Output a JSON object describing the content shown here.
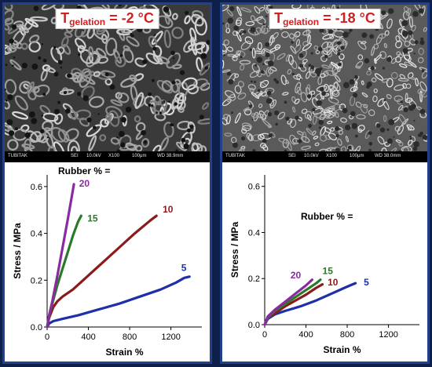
{
  "panels": [
    {
      "id": "left",
      "temperature_label": {
        "symbol": "T",
        "subscript": "gelation",
        "value": " = -2 °C"
      },
      "sem_info_bar": [
        "TUBITAK",
        "SEI",
        "10.0kV",
        "X100",
        "100μm",
        "WD 38.9mm"
      ],
      "annotation": "Rubber % ="
    },
    {
      "id": "right",
      "temperature_label": {
        "symbol": "T",
        "subscript": "gelation",
        "value": " = -18 °C"
      },
      "sem_info_bar": [
        "TUBITAK",
        "SEI",
        "10.0kV",
        "X100",
        "100μm",
        "WD 38.0mm"
      ],
      "annotation": "Rubber % ="
    }
  ],
  "chart_data": [
    {
      "type": "line",
      "xlabel": "Strain %",
      "ylabel": "Stress / MPa",
      "xlim": [
        0,
        1500
      ],
      "ylim": [
        0,
        0.65
      ],
      "xticks": [
        0,
        400,
        800,
        1200
      ],
      "yticks": [
        0.0,
        0.2,
        0.4,
        0.6
      ],
      "ytick_labels": [
        "0.0",
        "0.2",
        "0.4",
        "0.6"
      ],
      "xtick_labels": [
        "0",
        "400",
        "800",
        "1200"
      ],
      "series": [
        {
          "name": "5",
          "color": "#1f2fa8",
          "x": [
            0,
            20,
            60,
            150,
            300,
            500,
            700,
            900,
            1100,
            1250,
            1330,
            1380
          ],
          "y": [
            0,
            0.015,
            0.025,
            0.035,
            0.05,
            0.075,
            0.1,
            0.13,
            0.16,
            0.19,
            0.21,
            0.215
          ]
        },
        {
          "name": "10",
          "color": "#8b1a1a",
          "x": [
            0,
            20,
            60,
            100,
            150,
            250,
            400,
            550,
            700,
            850,
            1000,
            1060
          ],
          "y": [
            0,
            0.04,
            0.085,
            0.11,
            0.13,
            0.16,
            0.22,
            0.28,
            0.34,
            0.4,
            0.455,
            0.475
          ]
        },
        {
          "name": "15",
          "color": "#2a7a2a",
          "x": [
            0,
            20,
            50,
            100,
            150,
            200,
            250,
            300,
            330
          ],
          "y": [
            0,
            0.05,
            0.1,
            0.18,
            0.25,
            0.32,
            0.39,
            0.45,
            0.475
          ]
        },
        {
          "name": "20",
          "color": "#8a2aa0",
          "x": [
            0,
            20,
            50,
            100,
            150,
            200,
            240,
            260
          ],
          "y": [
            0,
            0.05,
            0.11,
            0.22,
            0.34,
            0.46,
            0.56,
            0.61
          ]
        }
      ],
      "labels": [
        {
          "text": "20",
          "x": 310,
          "y": 0.6
        },
        {
          "text": "15",
          "x": 390,
          "y": 0.45
        },
        {
          "text": "10",
          "x": 1120,
          "y": 0.49
        },
        {
          "text": "5",
          "x": 1300,
          "y": 0.24
        }
      ]
    },
    {
      "type": "line",
      "xlabel": "Strain %",
      "ylabel": "Stress / MPa",
      "xlim": [
        0,
        1500
      ],
      "ylim": [
        0,
        0.65
      ],
      "xticks": [
        0,
        400,
        800,
        1200
      ],
      "yticks": [
        0.0,
        0.2,
        0.4,
        0.6
      ],
      "ytick_labels": [
        "0.0",
        "0.2",
        "0.4",
        "0.6"
      ],
      "xtick_labels": [
        "0",
        "400",
        "800",
        "1200"
      ],
      "series": [
        {
          "name": "5",
          "color": "#1f2fa8",
          "x": [
            0,
            30,
            100,
            200,
            350,
            500,
            650,
            800,
            880
          ],
          "y": [
            0,
            0.025,
            0.045,
            0.06,
            0.08,
            0.105,
            0.135,
            0.165,
            0.18
          ]
        },
        {
          "name": "10",
          "color": "#8b1a1a",
          "x": [
            0,
            30,
            100,
            200,
            300,
            400,
            500,
            560
          ],
          "y": [
            0,
            0.03,
            0.05,
            0.08,
            0.105,
            0.13,
            0.16,
            0.175
          ]
        },
        {
          "name": "15",
          "color": "#2a7a2a",
          "x": [
            0,
            30,
            100,
            200,
            300,
            400,
            500,
            540
          ],
          "y": [
            0,
            0.03,
            0.06,
            0.09,
            0.12,
            0.15,
            0.18,
            0.195
          ]
        },
        {
          "name": "20",
          "color": "#8a2aa0",
          "x": [
            0,
            30,
            100,
            200,
            300,
            400,
            460
          ],
          "y": [
            0,
            0.035,
            0.065,
            0.1,
            0.135,
            0.17,
            0.195
          ]
        }
      ],
      "labels": [
        {
          "text": "20",
          "x": 250,
          "y": 0.2
        },
        {
          "text": "15",
          "x": 560,
          "y": 0.22
        },
        {
          "text": "10",
          "x": 610,
          "y": 0.17
        },
        {
          "text": "5",
          "x": 960,
          "y": 0.17
        }
      ]
    }
  ]
}
